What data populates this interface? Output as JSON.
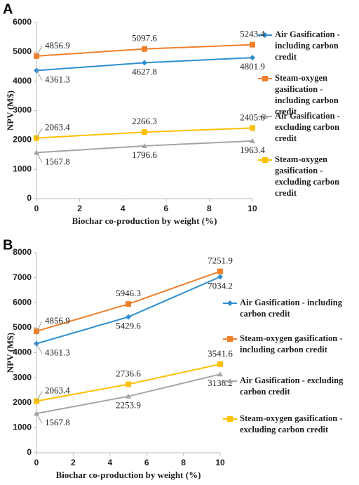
{
  "chart_data": [
    {
      "type": "line",
      "label": "A",
      "x_label": "Biochar co-production by weight (%)",
      "y_label": "NPV (M$)",
      "x": [
        0,
        5,
        10
      ],
      "xlim": [
        0,
        10
      ],
      "xticks": [
        0,
        2,
        4,
        6,
        8,
        10
      ],
      "ylim": [
        0,
        6000
      ],
      "yticks": [
        0,
        1000,
        2000,
        3000,
        4000,
        5000,
        6000
      ],
      "legend": "right",
      "series": [
        {
          "name": "Air Gasification - including carbon credit",
          "color": "#2e8fd0",
          "marker": "diamond",
          "values": [
            4361.3,
            4627.8,
            4801.9
          ]
        },
        {
          "name": "Steam-oxygen gasification - including carbon credit",
          "color": "#f07f2a",
          "marker": "square",
          "values": [
            4856.9,
            5097.6,
            5243.4
          ]
        },
        {
          "name": "Air Gasification - excluding carbon credit",
          "color": "#a5a5a5",
          "marker": "triangle",
          "values": [
            1567.8,
            1796.6,
            1963.4
          ]
        },
        {
          "name": "Steam-oxygen gasification - excluding carbon credit",
          "color": "#ffc000",
          "marker": "square",
          "values": [
            2063.4,
            2266.3,
            2405.6
          ]
        }
      ]
    },
    {
      "type": "line",
      "label": "B",
      "x_label": "Biochar co-production by weight (%)",
      "y_label": "NPV (M$)",
      "x": [
        0,
        5,
        10
      ],
      "xlim": [
        0,
        10
      ],
      "xticks": [
        0,
        2,
        4,
        6,
        8,
        10
      ],
      "ylim": [
        0,
        8000
      ],
      "yticks": [
        0,
        1000,
        2000,
        3000,
        4000,
        5000,
        6000,
        7000,
        8000
      ],
      "legend": "right",
      "series": [
        {
          "name": "Air Gasification - including carbon credit",
          "color": "#2e8fd0",
          "marker": "diamond",
          "values": [
            4361.3,
            5429.6,
            7034.2
          ]
        },
        {
          "name": "Steam-oxygen gasification - including carbon credit",
          "color": "#f07f2a",
          "marker": "square",
          "values": [
            4856.9,
            5946.3,
            7251.9
          ]
        },
        {
          "name": "Air Gasification - excluding carbon credit",
          "color": "#a5a5a5",
          "marker": "triangle",
          "values": [
            1567.8,
            2253.9,
            3138.2
          ]
        },
        {
          "name": "Steam-oxygen gasification - excluding carbon credit",
          "color": "#ffc000",
          "marker": "square",
          "values": [
            2063.4,
            2736.6,
            3541.6
          ]
        }
      ]
    }
  ]
}
